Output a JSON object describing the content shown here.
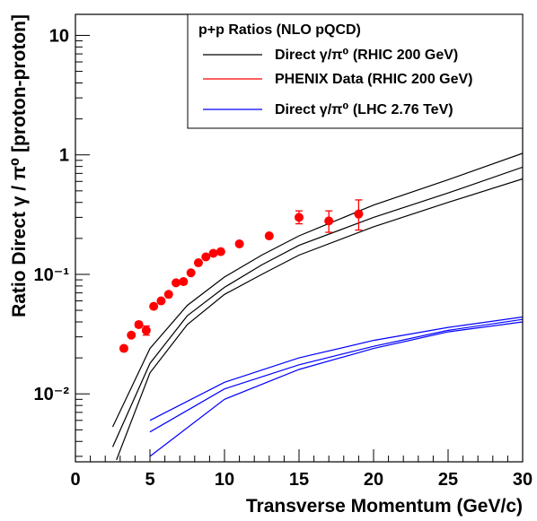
{
  "chart_data": {
    "type": "line",
    "title": "",
    "xlabel": "Transverse Momentum (GeV/c)",
    "ylabel": "Ratio Direct γ / π⁰ [proton-proton]",
    "xlim": [
      0,
      30
    ],
    "ylim": [
      0.0027,
      15
    ],
    "yscale": "log",
    "grid": false,
    "legend_position": "top-right",
    "x_ticks": [
      {
        "value": 0,
        "label": "0"
      },
      {
        "value": 5,
        "label": "5"
      },
      {
        "value": 10,
        "label": "10"
      },
      {
        "value": 15,
        "label": "15"
      },
      {
        "value": 20,
        "label": "20"
      },
      {
        "value": 25,
        "label": "25"
      },
      {
        "value": 30,
        "label": "30"
      }
    ],
    "y_ticks": [
      {
        "value": 10,
        "label": "10"
      },
      {
        "value": 1,
        "label": "1"
      },
      {
        "value": 0.1,
        "label": "10⁻¹"
      },
      {
        "value": 0.01,
        "label": "10⁻²"
      }
    ],
    "legend": {
      "title": "p+p Ratios (NLO pQCD)",
      "entries": [
        {
          "label": "Direct γ/π⁰ (RHIC 200 GeV)",
          "color": "#000000"
        },
        {
          "label": "PHENIX Data (RHIC 200 GeV)",
          "color": "#ff0000"
        },
        {
          "label": "Direct γ/π⁰ (LHC 2.76 TeV)",
          "color": "#0000ff"
        }
      ]
    },
    "series": [
      {
        "group": "rhic",
        "color": "#000000",
        "x": [
          2.5,
          5,
          7.5,
          10,
          12.5,
          15,
          20,
          25,
          30
        ],
        "y": [
          0.0053,
          0.024,
          0.055,
          0.095,
          0.145,
          0.21,
          0.38,
          0.62,
          1.03
        ]
      },
      {
        "group": "rhic",
        "color": "#000000",
        "x": [
          2.5,
          5,
          7.5,
          10,
          12.5,
          15,
          20,
          25,
          30
        ],
        "y": [
          0.0036,
          0.018,
          0.045,
          0.078,
          0.12,
          0.175,
          0.3,
          0.48,
          0.79
        ]
      },
      {
        "group": "rhic",
        "color": "#000000",
        "x": [
          2.75,
          5,
          7.5,
          10,
          12.5,
          15,
          20,
          25,
          30
        ],
        "y": [
          0.0028,
          0.015,
          0.038,
          0.068,
          0.1,
          0.145,
          0.25,
          0.4,
          0.63
        ]
      },
      {
        "group": "lhc",
        "color": "#0000ff",
        "x": [
          5,
          10,
          15,
          20,
          25,
          30
        ],
        "y": [
          0.006,
          0.0125,
          0.02,
          0.028,
          0.036,
          0.044
        ]
      },
      {
        "group": "lhc",
        "color": "#0000ff",
        "x": [
          5,
          10,
          15,
          20,
          25,
          30
        ],
        "y": [
          0.0048,
          0.011,
          0.0175,
          0.025,
          0.034,
          0.042
        ]
      },
      {
        "group": "lhc",
        "color": "#0000ff",
        "x": [
          5,
          10,
          15,
          20,
          25,
          30
        ],
        "y": [
          0.003,
          0.009,
          0.016,
          0.024,
          0.033,
          0.04
        ]
      }
    ],
    "points": {
      "name": "PHENIX Data (RHIC 200 GeV)",
      "color": "#ff0000",
      "x": [
        3.25,
        3.75,
        4.25,
        4.75,
        5.25,
        5.75,
        6.25,
        6.75,
        7.25,
        7.75,
        8.25,
        8.75,
        9.25,
        9.75,
        11,
        13,
        15,
        17,
        19
      ],
      "y": [
        0.024,
        0.031,
        0.038,
        0.034,
        0.054,
        0.06,
        0.068,
        0.085,
        0.087,
        0.103,
        0.125,
        0.14,
        0.15,
        0.155,
        0.18,
        0.21,
        0.3,
        0.28,
        0.32
      ],
      "err_low": [
        0.024,
        0.031,
        0.036,
        0.031,
        0.054,
        0.06,
        0.068,
        0.085,
        0.087,
        0.103,
        0.125,
        0.14,
        0.15,
        0.155,
        0.18,
        0.21,
        0.265,
        0.225,
        0.235
      ],
      "err_high": [
        0.024,
        0.031,
        0.04,
        0.037,
        0.054,
        0.06,
        0.068,
        0.085,
        0.087,
        0.103,
        0.125,
        0.14,
        0.15,
        0.155,
        0.18,
        0.21,
        0.34,
        0.34,
        0.42
      ]
    }
  }
}
